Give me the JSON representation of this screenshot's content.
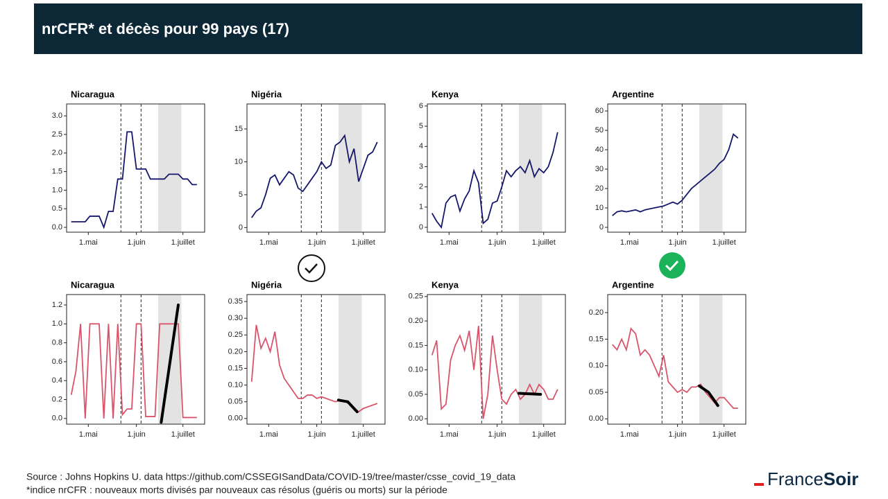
{
  "header": {
    "title": "nrCFR* et décès pour 99 pays (17)"
  },
  "footer": {
    "source": "Source : Johns Hopkins U. data https://github.com/CSSEGISandData/COVID-19/tree/master/csse_covid_19_data",
    "note": "*indice nrCFR : nouveaux morts divisés par nouveaux cas résolus (guéris ou morts) sur la période"
  },
  "logo": {
    "first": "France",
    "second": "Soir"
  },
  "chart_data": [
    {
      "type": "line",
      "title": "Nicaragua",
      "color": "#15166b",
      "xlim": [
        107,
        196
      ],
      "ylim": [
        -0.13,
        3.32
      ],
      "xticks": [
        {
          "value": 121,
          "label": "1.mai"
        },
        {
          "value": 152,
          "label": "1.juin"
        },
        {
          "value": 182,
          "label": "1.juillet"
        }
      ],
      "yticks": [
        {
          "value": 0,
          "label": "0.0"
        },
        {
          "value": 0.5,
          "label": "0.5"
        },
        {
          "value": 1,
          "label": "1.0"
        },
        {
          "value": 1.5,
          "label": "1.5"
        },
        {
          "value": 2,
          "label": "2.0"
        },
        {
          "value": 2.5,
          "label": "2.5"
        },
        {
          "value": 3,
          "label": "3.0"
        }
      ],
      "vlines": [
        142,
        155
      ],
      "span": [
        166,
        181
      ],
      "x": [
        110,
        113,
        116,
        119,
        122,
        125,
        128,
        131,
        134,
        137,
        140,
        143,
        146,
        149,
        152,
        155,
        158,
        161,
        164,
        167,
        170,
        173,
        176,
        179,
        182,
        185,
        188,
        191
      ],
      "values": [
        0.15,
        0.15,
        0.15,
        0.15,
        0.3,
        0.3,
        0.3,
        0,
        0.43,
        0.43,
        1.3,
        1.3,
        2.57,
        2.57,
        1.57,
        1.57,
        1.57,
        1.3,
        1.3,
        1.3,
        1.3,
        1.43,
        1.43,
        1.43,
        1.3,
        1.3,
        1.15,
        1.15
      ]
    },
    {
      "type": "line",
      "title": "Nigéria",
      "color": "#15166b",
      "xlim": [
        107,
        196
      ],
      "ylim": [
        -0.7,
        18.8
      ],
      "xticks": [
        {
          "value": 121,
          "label": "1.mai"
        },
        {
          "value": 152,
          "label": "1.juin"
        },
        {
          "value": 182,
          "label": "1.juillet"
        }
      ],
      "yticks": [
        0,
        5,
        10,
        15
      ],
      "vlines": [
        142,
        155
      ],
      "span": [
        166,
        181
      ],
      "x": [
        110,
        113,
        116,
        119,
        122,
        125,
        128,
        131,
        134,
        137,
        140,
        143,
        146,
        149,
        152,
        155,
        158,
        161,
        164,
        167,
        170,
        173,
        176,
        179,
        182,
        185,
        188,
        191
      ],
      "values": [
        1.5,
        2.5,
        3,
        5,
        7.5,
        8,
        6.5,
        7.5,
        8.5,
        8,
        6,
        5.5,
        6.5,
        7.5,
        8.5,
        10,
        9,
        9.5,
        12.5,
        13,
        14,
        10,
        12,
        7,
        9,
        11,
        11.5,
        13
      ]
    },
    {
      "type": "line",
      "title": "Kenya",
      "color": "#15166b",
      "xlim": [
        107,
        196
      ],
      "ylim": [
        -0.24,
        6.1
      ],
      "xticks": [
        {
          "value": 121,
          "label": "1.mai"
        },
        {
          "value": 152,
          "label": "1.juin"
        },
        {
          "value": 182,
          "label": "1.juillet"
        }
      ],
      "yticks": [
        0,
        1,
        2,
        3,
        4,
        5,
        6
      ],
      "vlines": [
        142,
        155
      ],
      "span": [
        166,
        181
      ],
      "x": [
        110,
        113,
        116,
        119,
        122,
        125,
        128,
        131,
        134,
        137,
        140,
        143,
        146,
        149,
        152,
        155,
        158,
        161,
        164,
        167,
        170,
        173,
        176,
        179,
        182,
        185,
        188,
        191
      ],
      "values": [
        0.7,
        0.3,
        0,
        1.2,
        1.5,
        1.6,
        0.8,
        1.4,
        1.8,
        2.8,
        2.2,
        0.2,
        0.4,
        1.2,
        1.3,
        2,
        2.8,
        2.5,
        2.8,
        3,
        2.7,
        3.3,
        2.5,
        2.9,
        2.7,
        3,
        3.7,
        4.7
      ]
    },
    {
      "type": "line",
      "title": "Argentine",
      "color": "#15166b",
      "xlim": [
        107,
        196
      ],
      "ylim": [
        -2.5,
        63.6
      ],
      "xticks": [
        {
          "value": 121,
          "label": "1.mai"
        },
        {
          "value": 152,
          "label": "1.juin"
        },
        {
          "value": 182,
          "label": "1.juillet"
        }
      ],
      "yticks": [
        0,
        10,
        20,
        30,
        40,
        50,
        60
      ],
      "vlines": [
        142,
        155
      ],
      "span": [
        166,
        181
      ],
      "x": [
        110,
        113,
        116,
        119,
        122,
        125,
        128,
        131,
        134,
        137,
        140,
        143,
        146,
        149,
        152,
        155,
        158,
        161,
        164,
        167,
        170,
        173,
        176,
        179,
        182,
        185,
        188,
        191
      ],
      "values": [
        6,
        8,
        8.5,
        8,
        8.5,
        9,
        8,
        9,
        9.5,
        10,
        10.5,
        11,
        12,
        13,
        12,
        14,
        17,
        20,
        22,
        24,
        26,
        28,
        30,
        33,
        35,
        40,
        48,
        46
      ]
    },
    {
      "type": "line",
      "title": "Nicaragua",
      "color": "#d9546a",
      "xlim": [
        107,
        196
      ],
      "ylim": [
        -0.06,
        1.31
      ],
      "xticks": [
        {
          "value": 121,
          "label": "1.mai"
        },
        {
          "value": 152,
          "label": "1.juin"
        },
        {
          "value": 182,
          "label": "1.juillet"
        }
      ],
      "yticks": [
        {
          "value": 0,
          "label": "0.0"
        },
        {
          "value": 0.2,
          "label": "0.2"
        },
        {
          "value": 0.4,
          "label": "0.4"
        },
        {
          "value": 0.6,
          "label": "0.6"
        },
        {
          "value": 0.8,
          "label": "0.8"
        },
        {
          "value": 1,
          "label": "1.0"
        },
        {
          "value": 1.2,
          "label": "1.2"
        }
      ],
      "vlines": [
        142,
        155
      ],
      "span": [
        166,
        181
      ],
      "x": [
        110,
        113,
        116,
        119,
        122,
        125,
        128,
        131,
        134,
        137,
        140,
        143,
        146,
        149,
        152,
        155,
        158,
        161,
        164,
        167,
        170,
        173,
        176,
        179,
        182,
        185,
        188,
        191
      ],
      "values": [
        0.25,
        0.5,
        1,
        0,
        1,
        1,
        1,
        0,
        1,
        0,
        1,
        0.04,
        0.1,
        0.1,
        1,
        1,
        0.02,
        0.02,
        0.02,
        1,
        1,
        1,
        1,
        1,
        0.01,
        0.01,
        0.01,
        0.01
      ],
      "trend": {
        "x": [
          168,
          179
        ],
        "values": [
          -0.04,
          1.2
        ]
      }
    },
    {
      "type": "line",
      "title": "Nigéria",
      "color": "#d9546a",
      "xlim": [
        107,
        196
      ],
      "ylim": [
        -0.017,
        0.371
      ],
      "xticks": [
        {
          "value": 121,
          "label": "1.mai"
        },
        {
          "value": 152,
          "label": "1.juin"
        },
        {
          "value": 182,
          "label": "1.juillet"
        }
      ],
      "yticks": [
        {
          "value": 0,
          "label": "0.00"
        },
        {
          "value": 0.05,
          "label": "0.05"
        },
        {
          "value": 0.1,
          "label": "0.10"
        },
        {
          "value": 0.15,
          "label": "0.15"
        },
        {
          "value": 0.2,
          "label": "0.20"
        },
        {
          "value": 0.25,
          "label": "0.25"
        },
        {
          "value": 0.3,
          "label": "0.30"
        },
        {
          "value": 0.35,
          "label": "0.35"
        }
      ],
      "vlines": [
        142,
        155
      ],
      "span": [
        166,
        181
      ],
      "x": [
        110,
        113,
        116,
        119,
        122,
        125,
        128,
        131,
        134,
        137,
        140,
        143,
        146,
        149,
        152,
        155,
        158,
        161,
        164,
        167,
        170,
        173,
        176,
        179,
        182,
        185,
        188,
        191
      ],
      "values": [
        0.11,
        0.28,
        0.21,
        0.24,
        0.2,
        0.26,
        0.16,
        0.12,
        0.1,
        0.08,
        0.06,
        0.06,
        0.07,
        0.07,
        0.06,
        0.065,
        0.06,
        0.055,
        0.05,
        0.055,
        0.05,
        0.045,
        0.03,
        0.02,
        0.03,
        0.035,
        0.04,
        0.045
      ],
      "trend": {
        "x": [
          166,
          172,
          178
        ],
        "values": [
          0.055,
          0.05,
          0.02
        ]
      }
    },
    {
      "type": "line",
      "title": "Kenya",
      "color": "#d9546a",
      "xlim": [
        107,
        196
      ],
      "ylim": [
        -0.011,
        0.254
      ],
      "xticks": [
        {
          "value": 121,
          "label": "1.mai"
        },
        {
          "value": 152,
          "label": "1.juin"
        },
        {
          "value": 182,
          "label": "1.juillet"
        }
      ],
      "yticks": [
        {
          "value": 0,
          "label": "0.00"
        },
        {
          "value": 0.05,
          "label": "0.05"
        },
        {
          "value": 0.1,
          "label": "0.10"
        },
        {
          "value": 0.15,
          "label": "0.15"
        },
        {
          "value": 0.2,
          "label": "0.20"
        },
        {
          "value": 0.25,
          "label": "0.25"
        }
      ],
      "vlines": [
        142,
        155
      ],
      "span": [
        166,
        181
      ],
      "x": [
        110,
        113,
        116,
        119,
        122,
        125,
        128,
        131,
        134,
        137,
        140,
        143,
        146,
        149,
        152,
        155,
        158,
        161,
        164,
        167,
        170,
        173,
        176,
        179,
        182,
        185,
        188,
        191
      ],
      "values": [
        0.13,
        0.16,
        0.02,
        0.03,
        0.12,
        0.15,
        0.17,
        0.14,
        0.18,
        0.1,
        0.19,
        0,
        0.05,
        0.17,
        0.1,
        0.04,
        0.03,
        0.05,
        0.06,
        0.04,
        0.05,
        0.07,
        0.05,
        0.07,
        0.06,
        0.04,
        0.04,
        0.06
      ],
      "trend": {
        "x": [
          166,
          180
        ],
        "values": [
          0.052,
          0.05
        ]
      }
    },
    {
      "type": "line",
      "title": "Argentine",
      "color": "#d9546a",
      "xlim": [
        107,
        196
      ],
      "ylim": [
        -0.01,
        0.234
      ],
      "xticks": [
        {
          "value": 121,
          "label": "1.mai"
        },
        {
          "value": 152,
          "label": "1.juin"
        },
        {
          "value": 182,
          "label": "1.juillet"
        }
      ],
      "yticks": [
        {
          "value": 0,
          "label": "0.00"
        },
        {
          "value": 0.05,
          "label": "0.05"
        },
        {
          "value": 0.1,
          "label": "0.10"
        },
        {
          "value": 0.15,
          "label": "0.15"
        },
        {
          "value": 0.2,
          "label": "0.20"
        }
      ],
      "vlines": [
        142,
        155
      ],
      "span": [
        166,
        181
      ],
      "x": [
        110,
        113,
        116,
        119,
        122,
        125,
        128,
        131,
        134,
        137,
        140,
        143,
        146,
        149,
        152,
        155,
        158,
        161,
        164,
        167,
        170,
        173,
        176,
        179,
        182,
        185,
        188,
        191
      ],
      "values": [
        0.14,
        0.13,
        0.15,
        0.13,
        0.17,
        0.16,
        0.12,
        0.13,
        0.12,
        0.1,
        0.08,
        0.12,
        0.07,
        0.06,
        0.05,
        0.055,
        0.05,
        0.06,
        0.06,
        0.065,
        0.05,
        0.04,
        0.03,
        0.04,
        0.04,
        0.03,
        0.02,
        0.02
      ],
      "trend": {
        "x": [
          166,
          172,
          178
        ],
        "values": [
          0.062,
          0.05,
          0.025
        ]
      }
    }
  ]
}
